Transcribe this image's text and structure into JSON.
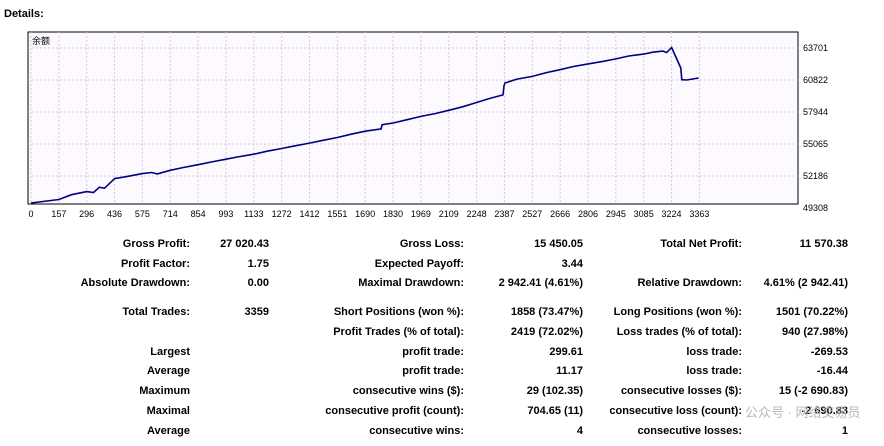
{
  "header": {
    "title": "Details:"
  },
  "chart_data": {
    "type": "line",
    "corner_label": "余额",
    "x_ticks": [
      "0",
      "157",
      "296",
      "436",
      "575",
      "714",
      "854",
      "993",
      "1133",
      "1272",
      "1412",
      "1551",
      "1690",
      "1830",
      "1969",
      "2109",
      "2248",
      "2387",
      "2527",
      "2666",
      "2806",
      "2945",
      "3085",
      "3224",
      "3363"
    ],
    "y_ticks": [
      "63701",
      "60822",
      "57944",
      "55065",
      "52186",
      "49308"
    ],
    "xlim": [
      0,
      3359
    ],
    "ylim": [
      49308,
      63701
    ],
    "grid": true,
    "colors": {
      "line": "#000080",
      "grid": "#d9c7d9",
      "background": "#fcfaff"
    },
    "series": [
      {
        "x": [
          0,
          157,
          220,
          296,
          330,
          360,
          385,
          436,
          500,
          575,
          620,
          650,
          714,
          780,
          854,
          920,
          993,
          1050,
          1133,
          1200,
          1272,
          1340,
          1412,
          1480,
          1551,
          1620,
          1690,
          1770,
          1775,
          1830,
          1900,
          1969,
          2040,
          2109,
          2180,
          2248,
          2310,
          2380,
          2385,
          2390,
          2450,
          2527,
          2600,
          2666,
          2730,
          2806,
          2880,
          2945,
          3010,
          3085,
          3130,
          3180,
          3200,
          3224,
          3270,
          3275,
          3300,
          3359
        ],
        "y": [
          49600,
          50070,
          50500,
          50780,
          50700,
          51180,
          51080,
          51950,
          52150,
          52400,
          52500,
          52380,
          52700,
          52950,
          53200,
          53450,
          53700,
          53900,
          54150,
          54420,
          54660,
          54900,
          55150,
          55400,
          55650,
          55950,
          56220,
          56420,
          56800,
          56950,
          57250,
          57550,
          57800,
          58100,
          58420,
          58800,
          59150,
          59480,
          60300,
          60550,
          60900,
          61150,
          61500,
          61750,
          62030,
          62270,
          62500,
          62720,
          62980,
          63150,
          63320,
          63420,
          63300,
          63750,
          61900,
          60850,
          60820,
          61000
        ]
      }
    ]
  },
  "stats": {
    "gross_profit_label": "Gross Profit:",
    "gross_profit": "27 020.43",
    "gross_loss_label": "Gross Loss:",
    "gross_loss": "15 450.05",
    "net_profit_label": "Total Net Profit:",
    "net_profit": "11 570.38",
    "profit_factor_label": "Profit Factor:",
    "profit_factor": "1.75",
    "expected_payoff_label": "Expected Payoff:",
    "expected_payoff": "3.44",
    "abs_drawdown_label": "Absolute Drawdown:",
    "abs_drawdown": "0.00",
    "max_drawdown_label": "Maximal Drawdown:",
    "max_drawdown": "2 942.41 (4.61%)",
    "rel_drawdown_label": "Relative Drawdown:",
    "rel_drawdown": "4.61% (2 942.41)",
    "total_trades_label": "Total Trades:",
    "total_trades": "3359",
    "short_positions_label": "Short Positions (won %):",
    "short_positions": "1858 (73.47%)",
    "long_positions_label": "Long Positions (won %):",
    "long_positions": "1501 (70.22%)",
    "profit_trades_label": "Profit Trades (% of total):",
    "profit_trades": "2419 (72.02%)",
    "loss_trades_label": "Loss trades (% of total):",
    "loss_trades": "940 (27.98%)",
    "largest_label": "Largest",
    "largest_profit_label": "profit trade:",
    "largest_profit": "299.61",
    "largest_loss_label": "loss trade:",
    "largest_loss": "-269.53",
    "average_label": "Average",
    "average_profit_label": "profit trade:",
    "average_profit": "11.17",
    "average_loss_label": "loss trade:",
    "average_loss": "-16.44",
    "maximum_label": "Maximum",
    "max_consec_wins_label": "consecutive wins ($):",
    "max_consec_wins": "29 (102.35)",
    "max_consec_losses_label": "consecutive losses ($):",
    "max_consec_losses": "15 (-2 690.83)",
    "maximal_label": "Maximal",
    "maximal_consec_profit_label": "consecutive profit (count):",
    "maximal_consec_profit": "704.65 (11)",
    "maximal_consec_loss_label": "consecutive loss (count):",
    "maximal_consec_loss": "-2 690.83",
    "average2_label": "Average",
    "avg_consec_wins_label": "consecutive wins:",
    "avg_consec_wins": "4",
    "avg_consec_losses_label": "consecutive losses:",
    "avg_consec_losses": "1"
  },
  "watermark": "公众号 · 网络交易员"
}
